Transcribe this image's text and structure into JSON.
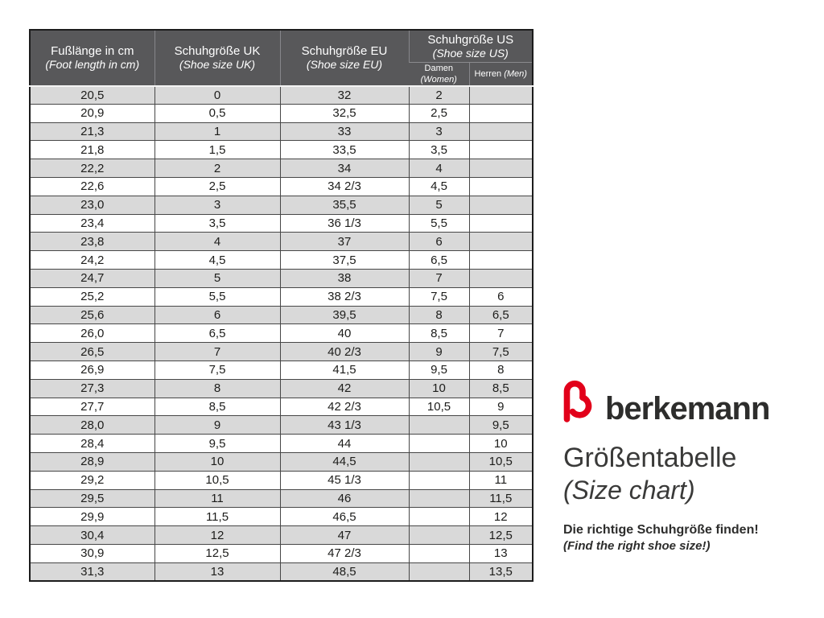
{
  "colors": {
    "header_bg": "#58585a",
    "row_shade": "#d9d9d9",
    "table_border": "#1c1c1c",
    "brand_red": "#e2001a",
    "text": "#1d1d1b"
  },
  "table": {
    "headers": [
      {
        "line1": "Fußlänge in cm",
        "line2": "(Foot length in cm)"
      },
      {
        "line1": "Schuhgröße UK",
        "line2": "(Shoe size UK)"
      },
      {
        "line1": "Schuhgröße EU",
        "line2": "(Shoe size EU)"
      },
      {
        "line1": "Schuhgröße US",
        "line2": "(Shoe size US)",
        "sub": [
          {
            "de": "Damen",
            "en": "(Women)"
          },
          {
            "de": "Herren",
            "en": "(Men)"
          }
        ]
      }
    ],
    "rows": [
      [
        "20,5",
        "0",
        "32",
        "2",
        ""
      ],
      [
        "20,9",
        "0,5",
        "32,5",
        "2,5",
        ""
      ],
      [
        "21,3",
        "1",
        "33",
        "3",
        ""
      ],
      [
        "21,8",
        "1,5",
        "33,5",
        "3,5",
        ""
      ],
      [
        "22,2",
        "2",
        "34",
        "4",
        ""
      ],
      [
        "22,6",
        "2,5",
        "34 2/3",
        "4,5",
        ""
      ],
      [
        "23,0",
        "3",
        "35,5",
        "5",
        ""
      ],
      [
        "23,4",
        "3,5",
        "36 1/3",
        "5,5",
        ""
      ],
      [
        "23,8",
        "4",
        "37",
        "6",
        ""
      ],
      [
        "24,2",
        "4,5",
        "37,5",
        "6,5",
        ""
      ],
      [
        "24,7",
        "5",
        "38",
        "7",
        ""
      ],
      [
        "25,2",
        "5,5",
        "38 2/3",
        "7,5",
        "6"
      ],
      [
        "25,6",
        "6",
        "39,5",
        "8",
        "6,5"
      ],
      [
        "26,0",
        "6,5",
        "40",
        "8,5",
        "7"
      ],
      [
        "26,5",
        "7",
        "40 2/3",
        "9",
        "7,5"
      ],
      [
        "26,9",
        "7,5",
        "41,5",
        "9,5",
        "8"
      ],
      [
        "27,3",
        "8",
        "42",
        "10",
        "8,5"
      ],
      [
        "27,7",
        "8,5",
        "42 2/3",
        "10,5",
        "9"
      ],
      [
        "28,0",
        "9",
        "43 1/3",
        "",
        "9,5"
      ],
      [
        "28,4",
        "9,5",
        "44",
        "",
        "10"
      ],
      [
        "28,9",
        "10",
        "44,5",
        "",
        "10,5"
      ],
      [
        "29,2",
        "10,5",
        "45 1/3",
        "",
        "11"
      ],
      [
        "29,5",
        "11",
        "46",
        "",
        "11,5"
      ],
      [
        "29,9",
        "11,5",
        "46,5",
        "",
        "12"
      ],
      [
        "30,4",
        "12",
        "47",
        "",
        "12,5"
      ],
      [
        "30,9",
        "12,5",
        "47 2/3",
        "",
        "13"
      ],
      [
        "31,3",
        "13",
        "48,5",
        "",
        "13,5"
      ]
    ]
  },
  "brand": {
    "name": "berkemann",
    "title": "Größentabelle",
    "title_en": "(Size chart)",
    "tagline": "Die richtige Schuhgröße finden!",
    "tagline_en": "(Find the right shoe size!)"
  }
}
